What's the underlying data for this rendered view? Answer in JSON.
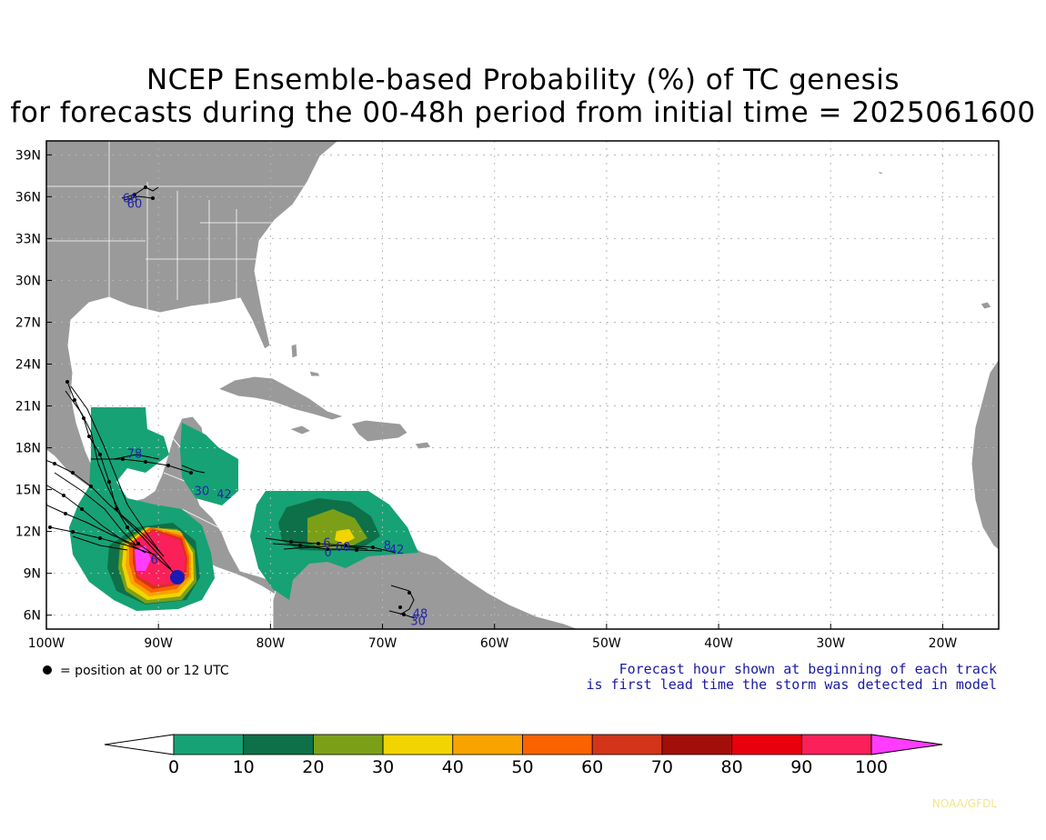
{
  "title_line1": "NCEP Ensemble-based Probability (%) of TC genesis",
  "title_line2": "for forecasts during the 00-48h period from initial time = 2025061600",
  "lat_labels": [
    "39N",
    "36N",
    "33N",
    "30N",
    "27N",
    "24N",
    "21N",
    "18N",
    "15N",
    "12N",
    "9N",
    "6N"
  ],
  "lat_values": [
    39,
    36,
    33,
    30,
    27,
    24,
    21,
    18,
    15,
    12,
    9,
    6
  ],
  "lon_labels": [
    "100W",
    "90W",
    "80W",
    "70W",
    "60W",
    "50W",
    "40W",
    "30W",
    "20W"
  ],
  "lon_values": [
    -100,
    -90,
    -80,
    -70,
    -60,
    -50,
    -40,
    -30,
    -20
  ],
  "map_extent": {
    "lon_min": -100,
    "lon_max": -15,
    "lat_min": 5,
    "lat_max": 40
  },
  "position_note": "= position at 00 or 12 UTC",
  "forecast_note_line1": "Forecast hour shown at beginning of each track",
  "forecast_note_line2": "is first lead time the storm was detected in model",
  "colorbar": {
    "labels": [
      "0",
      "10",
      "20",
      "30",
      "40",
      "50",
      "60",
      "70",
      "80",
      "90",
      "100"
    ],
    "colors": [
      "#16a275",
      "#0e7048",
      "#7ba018",
      "#f2d400",
      "#f9a300",
      "#fb6200",
      "#d4341a",
      "#a20f0a",
      "#e8000c",
      "#fb1f5a"
    ],
    "under_color": "#ffffff",
    "over_color": "#ff3cff"
  },
  "credit": "NOAA/GFDL",
  "colors": {
    "land": "#9a9a9a",
    "ocean": "#ffffff",
    "grid": "#b5b5b5"
  },
  "forecast_hours": [
    {
      "text": "66",
      "lon": -93.2,
      "lat": 35.6
    },
    {
      "text": "60",
      "lon": -92.8,
      "lat": 35.2
    },
    {
      "text": "78",
      "lon": -92.8,
      "lat": 17.3
    },
    {
      "text": "30",
      "lon": -86.8,
      "lat": 14.6
    },
    {
      "text": "42",
      "lon": -84.8,
      "lat": 14.4
    },
    {
      "text": "6",
      "lon": -90.7,
      "lat": 9.7
    },
    {
      "text": "60",
      "lon": -74.2,
      "lat": 10.6
    },
    {
      "text": "6",
      "lon": -75.3,
      "lat": 10.9
    },
    {
      "text": "0",
      "lon": -75.2,
      "lat": 10.2
    },
    {
      "text": "8",
      "lon": -69.9,
      "lat": 10.7
    },
    {
      "text": "42",
      "lon": -69.4,
      "lat": 10.4
    },
    {
      "text": "48",
      "lon": -67.3,
      "lat": 5.8
    },
    {
      "text": "30",
      "lon": -67.5,
      "lat": 5.3
    }
  ]
}
